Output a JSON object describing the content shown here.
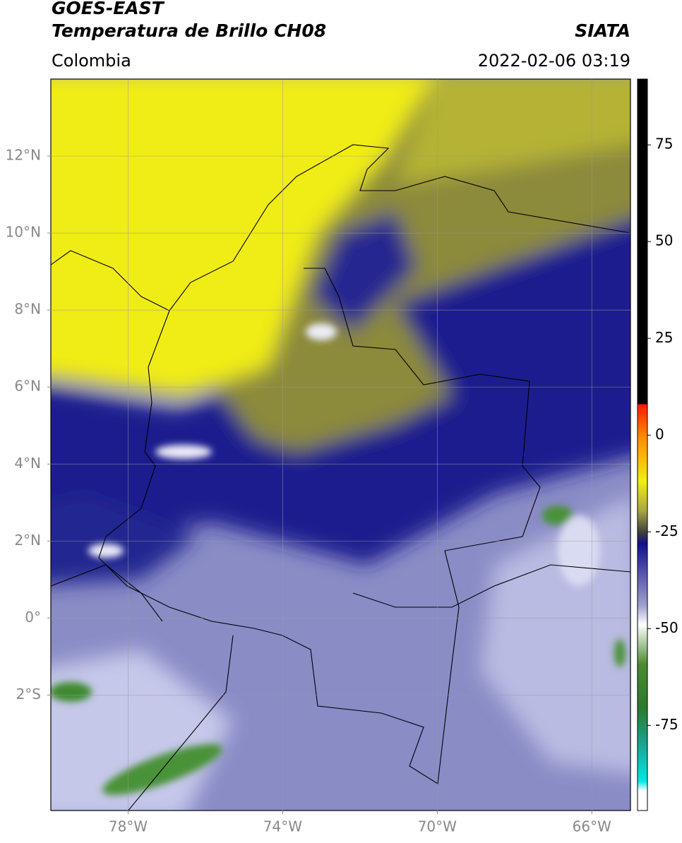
{
  "header": {
    "title": "GOES-EAST",
    "subtitle": "Temperatura de Brillo CH08",
    "brand": "SIATA",
    "region": "Colombia",
    "timestamp": "2022-02-06 03:19"
  },
  "map": {
    "xlim": [
      -80,
      -65
    ],
    "ylim": [
      -5,
      14
    ],
    "xticks": [
      {
        "value": -78,
        "label": "78°W"
      },
      {
        "value": -74,
        "label": "74°W"
      },
      {
        "value": -70,
        "label": "70°W"
      },
      {
        "value": -66,
        "label": "66°W"
      }
    ],
    "yticks": [
      {
        "value": 12,
        "label": "12°N"
      },
      {
        "value": 10,
        "label": "10°N"
      },
      {
        "value": 8,
        "label": "8°N"
      },
      {
        "value": 6,
        "label": "6°N"
      },
      {
        "value": 4,
        "label": "4°N"
      },
      {
        "value": 2,
        "label": "2°N"
      },
      {
        "value": 0,
        "label": "0°"
      },
      {
        "value": -2,
        "label": "2°S"
      }
    ],
    "grid": true
  },
  "colorbar": {
    "lim": [
      -97,
      92
    ],
    "ticks": [
      75,
      50,
      25,
      0,
      -25,
      -50,
      -75
    ]
  }
}
